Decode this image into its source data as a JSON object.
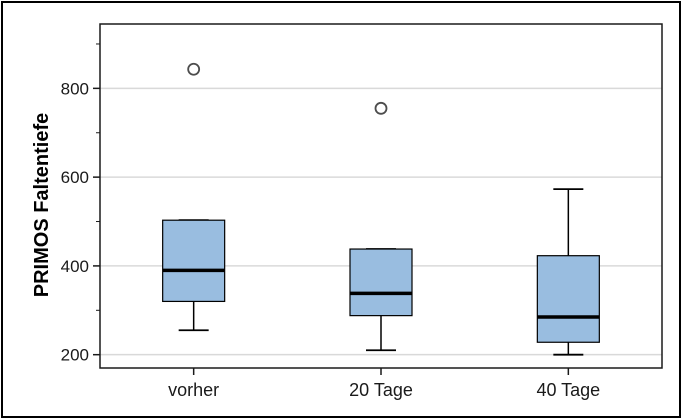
{
  "chart_data": {
    "type": "boxplot",
    "title": "",
    "xlabel": "",
    "ylabel": "PRIMOS Faltentiefe",
    "ylim": [
      170,
      945
    ],
    "yticks": [
      200,
      400,
      600,
      800
    ],
    "grid": true,
    "categories": [
      "vorher",
      "20 Tage",
      "40 Tage"
    ],
    "boxes": [
      {
        "category": "vorher",
        "whisker_low": 255,
        "q1": 320,
        "median": 390,
        "q3": 503,
        "whisker_high": 503,
        "outliers": [
          843
        ]
      },
      {
        "category": "20 Tage",
        "whisker_low": 210,
        "q1": 288,
        "median": 338,
        "q3": 438,
        "whisker_high": 438,
        "outliers": [
          755
        ]
      },
      {
        "category": "40 Tage",
        "whisker_low": 200,
        "q1": 228,
        "median": 285,
        "q3": 423,
        "whisker_high": 573,
        "outliers": []
      }
    ],
    "colors": {
      "box_fill": "#99bde0",
      "box_stroke": "#000000",
      "grid": "#d9d9d9",
      "outlier_stroke": "#4d4d4d"
    }
  }
}
